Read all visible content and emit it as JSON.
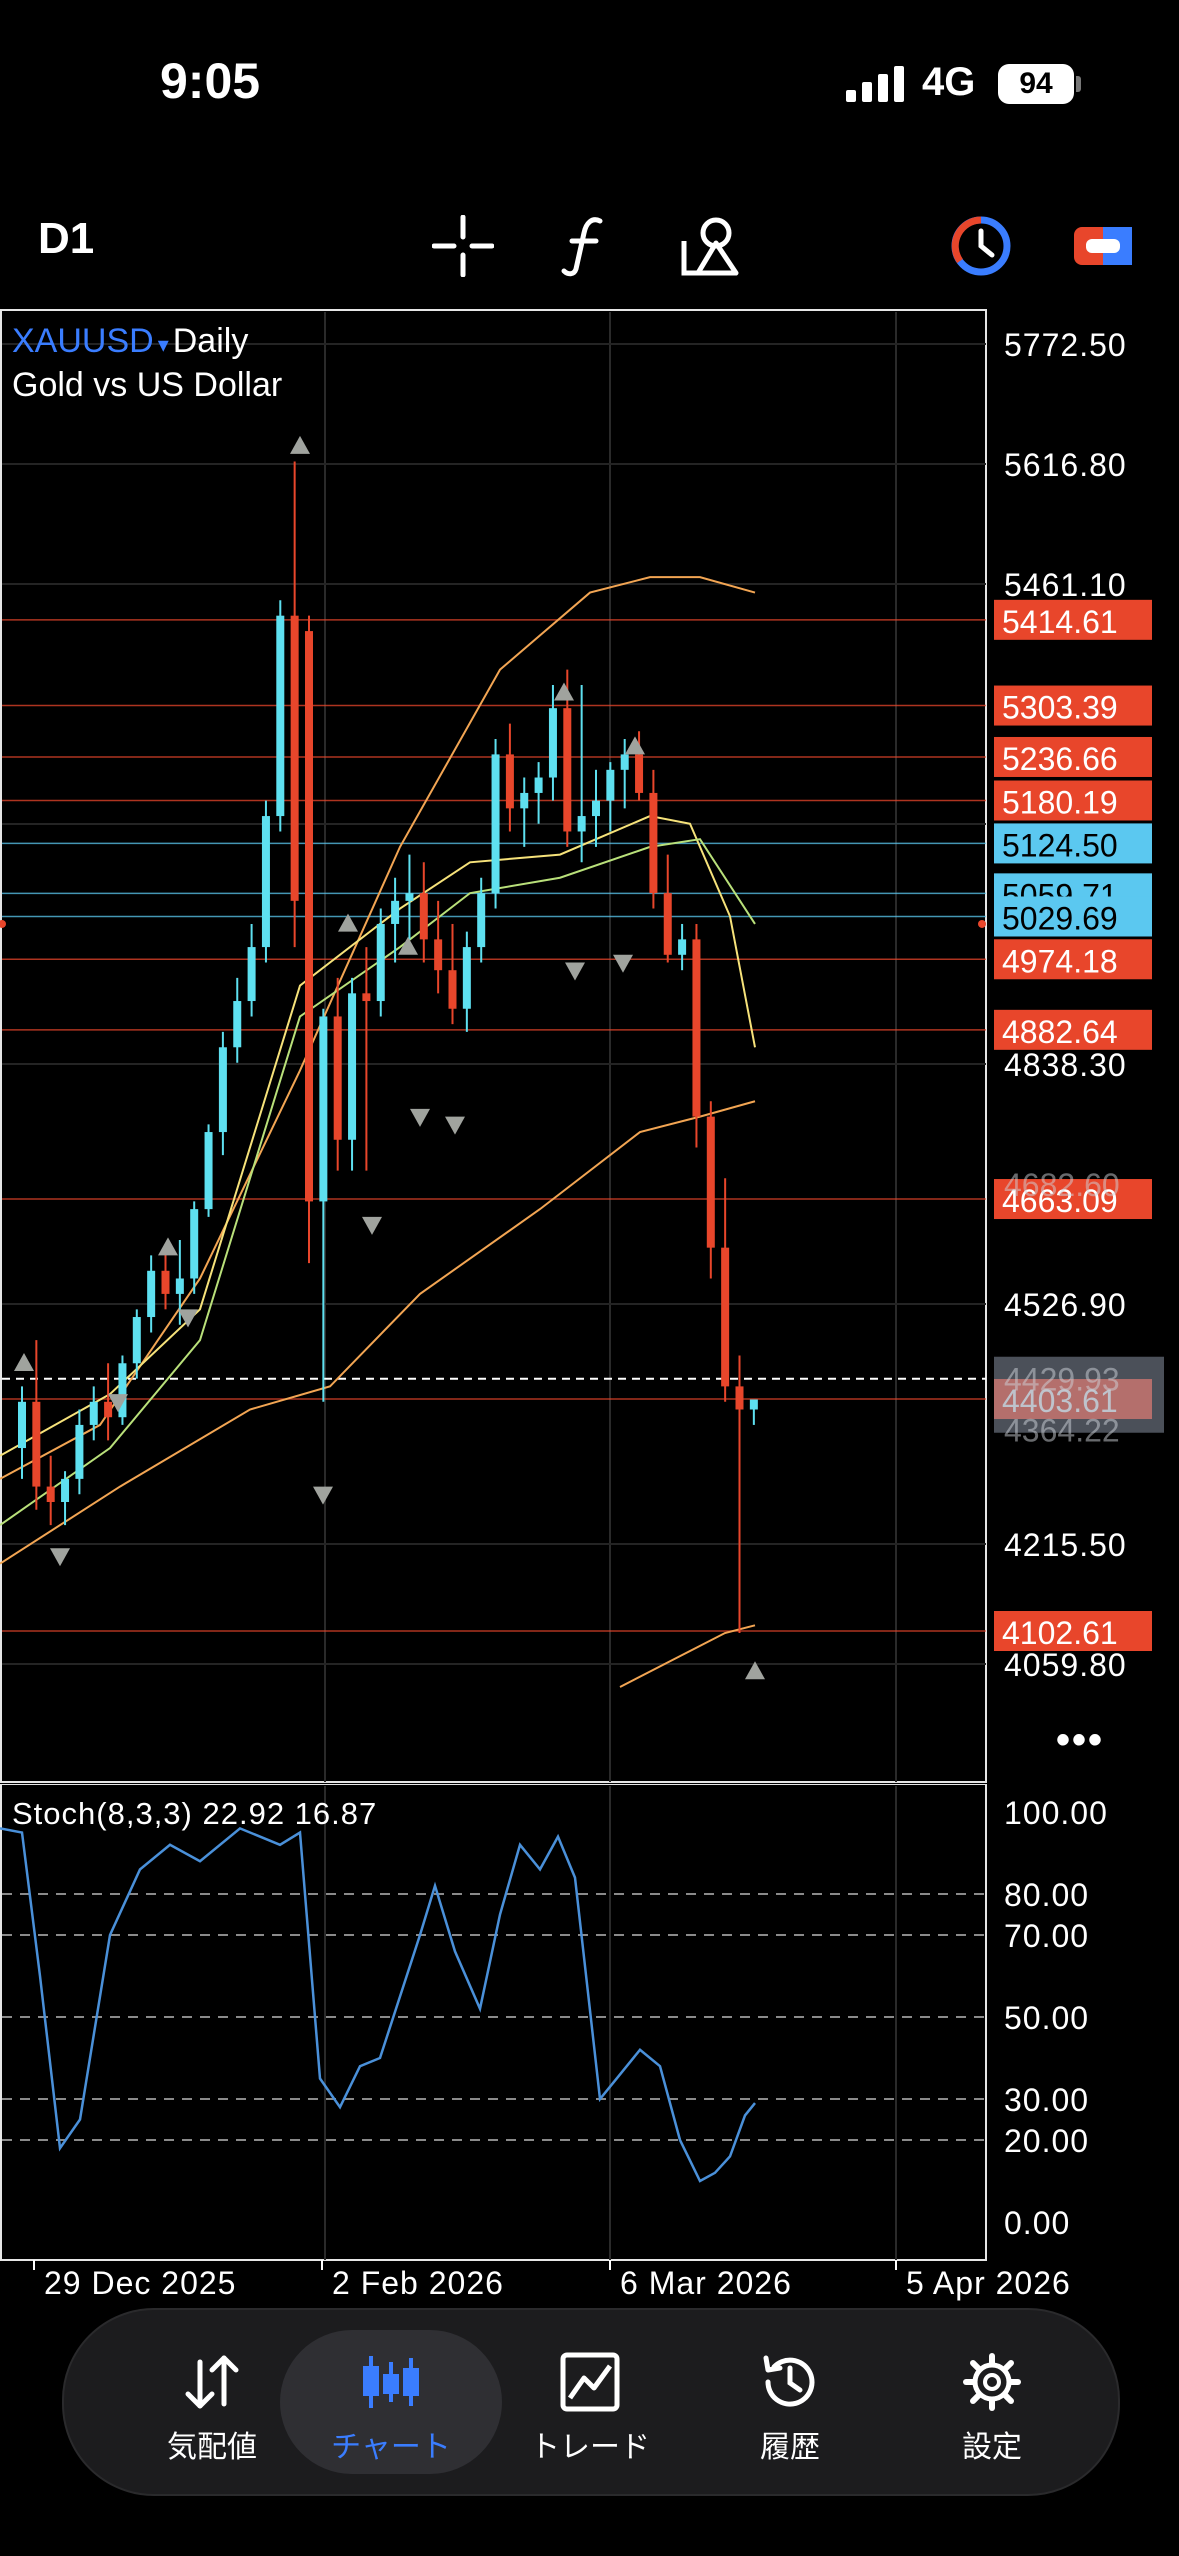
{
  "status_bar": {
    "time": "9:05",
    "network": "4G",
    "battery": "94"
  },
  "toolbar": {
    "timeframe": "D1",
    "tools": [
      "crosshair-icon",
      "function-icon",
      "objects-icon",
      "clock-icon",
      "trade-panel-icon"
    ]
  },
  "chart": {
    "symbol": "XAUUSD",
    "caret": "▾",
    "period": "Daily",
    "description": "Gold vs US Dollar",
    "price_axis": [
      "5772.50",
      "5616.80",
      "5461.10",
      "4838.30",
      "4526.90",
      "4215.50",
      "4059.80"
    ],
    "price_axis_partial": [
      "4682.60",
      "4429.93",
      "4364.22"
    ],
    "levels": [
      {
        "value": "5414.61",
        "color": "#e8462b"
      },
      {
        "value": "5303.39",
        "color": "#e8462b"
      },
      {
        "value": "5236.66",
        "color": "#e8462b"
      },
      {
        "value": "5180.19",
        "color": "#e8462b"
      },
      {
        "value": "5124.50",
        "color": "#5bc8f0"
      },
      {
        "value": "5059.71",
        "color": "#5bc8f0"
      },
      {
        "value": "5029.69",
        "color": "#5bc8f0"
      },
      {
        "value": "4974.18",
        "color": "#e8462b"
      },
      {
        "value": "4882.64",
        "color": "#e8462b"
      },
      {
        "value": "4663.09",
        "color": "#e8462b"
      },
      {
        "value": "4403.61",
        "color": "#e8462b"
      },
      {
        "value": "4102.61",
        "color": "#e8462b"
      }
    ],
    "current_price": "4429.93",
    "date_axis": [
      "29 Dec 2025",
      "2 Feb 2026",
      "6 Mar 2026",
      "5 Apr 2026"
    ],
    "more": "•••"
  },
  "stochastic": {
    "label": "Stoch(8,3,3) 22.92 16.87",
    "axis": [
      "100.00",
      "80.00",
      "70.00",
      "50.00",
      "30.00",
      "20.00",
      "0.00"
    ]
  },
  "tabs": [
    {
      "label": "気配値",
      "icon": "quotes-icon"
    },
    {
      "label": "チャート",
      "icon": "chart-candles-icon"
    },
    {
      "label": "トレード",
      "icon": "trade-icon"
    },
    {
      "label": "履歴",
      "icon": "history-icon"
    },
    {
      "label": "設定",
      "icon": "settings-icon"
    }
  ],
  "colors": {
    "bull": "#5ee0f0",
    "bear": "#e8462b",
    "accent": "#3a7dff",
    "stoch": "#4a90d9"
  }
}
